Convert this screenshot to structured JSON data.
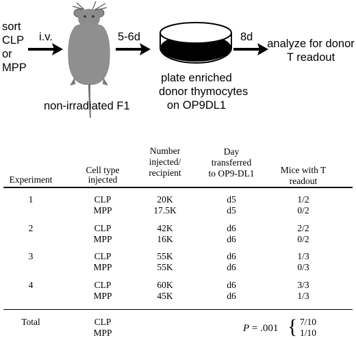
{
  "schematic": {
    "source_label": [
      "sort",
      "CLP",
      "or",
      "MPP"
    ],
    "route_label": "i.v.",
    "recipient_label": "non-irradiated F1",
    "interval_1": "5-6d",
    "plate_label": [
      "plate enriched",
      "donor thymocytes",
      "on OP9DL1"
    ],
    "interval_2": "8d",
    "outcome_label": [
      "analyze for donor",
      "T readout"
    ]
  },
  "table": {
    "headers": {
      "experiment": [
        "Experiment"
      ],
      "cell_type": [
        "Cell type",
        "injected"
      ],
      "number": [
        "Number",
        "injected/",
        "recipient"
      ],
      "day": [
        "Day",
        "transferred",
        "to OP9-DL1"
      ],
      "mice": [
        "Mice with T",
        "readout"
      ]
    },
    "groups": [
      {
        "experiment": "1",
        "rows": [
          {
            "cell_type": "CLP",
            "number": "20K",
            "day": "d5",
            "mice": "1/2"
          },
          {
            "cell_type": "MPP",
            "number": "17.5K",
            "day": "d5",
            "mice": "0/2"
          }
        ]
      },
      {
        "experiment": "2",
        "rows": [
          {
            "cell_type": "CLP",
            "number": "42K",
            "day": "d6",
            "mice": "2/2"
          },
          {
            "cell_type": "MPP",
            "number": "16K",
            "day": "d6",
            "mice": "0/2"
          }
        ]
      },
      {
        "experiment": "3",
        "rows": [
          {
            "cell_type": "CLP",
            "number": "55K",
            "day": "d6",
            "mice": "1/3"
          },
          {
            "cell_type": "MPP",
            "number": "55K",
            "day": "d6",
            "mice": "0/3"
          }
        ]
      },
      {
        "experiment": "4",
        "rows": [
          {
            "cell_type": "CLP",
            "number": "60K",
            "day": "d6",
            "mice": "3/3"
          },
          {
            "cell_type": "MPP",
            "number": "45K",
            "day": "d6",
            "mice": "1/3"
          }
        ]
      }
    ],
    "total": {
      "label": "Total",
      "cell_types": [
        "CLP",
        "MPP"
      ],
      "p_symbol": "P",
      "p_value": " = .001",
      "brace": "{",
      "values": [
        "7/10",
        "1/10"
      ]
    }
  }
}
